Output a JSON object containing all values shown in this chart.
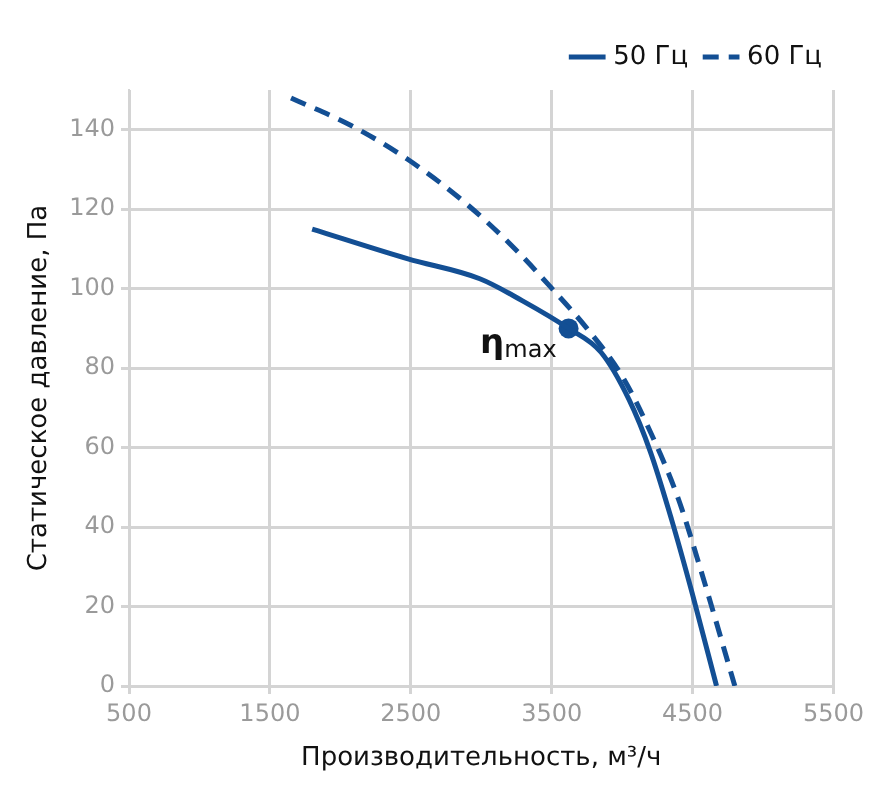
{
  "chart_data": {
    "type": "line",
    "xlabel": "Производительность, м³/ч",
    "ylabel": "Статическое давление, Па",
    "xlim": [
      500,
      5500
    ],
    "xticks": [
      500,
      1500,
      2500,
      3500,
      4500,
      5500
    ],
    "ylim": [
      0,
      150
    ],
    "yticks": [
      0,
      20,
      40,
      60,
      80,
      100,
      120,
      140
    ],
    "grid": true,
    "legend": "top right",
    "marker": "none",
    "series": [
      {
        "name": "50 Гц",
        "color": "#134f94",
        "line_style": "solid",
        "x": [
          1800,
          2480,
          2990,
          3290,
          3620,
          3850,
          4050,
          4200,
          4350,
          4500,
          4670
        ],
        "values": [
          115,
          107.5,
          102.5,
          97,
          90,
          84,
          72,
          59,
          42,
          23,
          0
        ]
      },
      {
        "name": "60 Гц",
        "color": "#134f94",
        "line_style": "dashed",
        "x": [
          1650,
          2080,
          2480,
          2890,
          3240,
          3490,
          3750,
          4000,
          4200,
          4400,
          4560,
          4800
        ],
        "values": [
          148,
          141,
          132.5,
          121.5,
          110,
          100.5,
          90,
          78,
          64,
          47,
          29,
          0
        ]
      },
      {
        "type": "scatter",
        "color": "#134f94",
        "marker": "circle",
        "x": [
          3620
        ],
        "values": [
          90
        ]
      }
    ],
    "annotations": [
      {
        "text": "η$_{max}$",
        "x": 3620,
        "y": 90
      }
    ]
  }
}
